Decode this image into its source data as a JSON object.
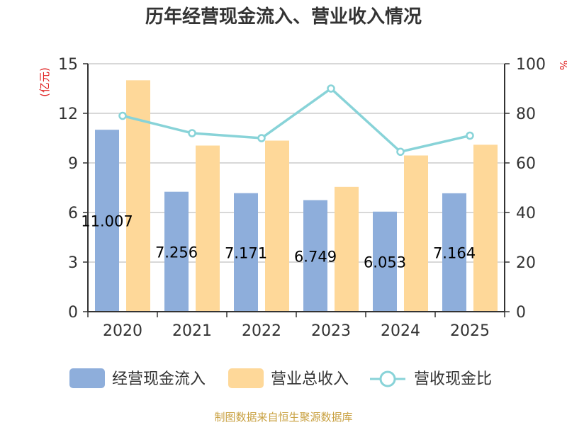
{
  "source_note": "制图数据来自恒生聚源数据库",
  "chart_data": {
    "type": "bar",
    "title": "历年经营现金流入、营业收入情况",
    "categories": [
      "2020",
      "2021",
      "2022",
      "2023",
      "2024",
      "2025"
    ],
    "y_left": {
      "unit": "(亿元)",
      "range": [
        0,
        15
      ],
      "ticks": [
        "0",
        "3",
        "6",
        "9",
        "12",
        "15"
      ]
    },
    "y_right": {
      "unit": "%",
      "range": [
        0,
        100
      ],
      "ticks": [
        "0",
        "20",
        "40",
        "60",
        "80",
        "100"
      ]
    },
    "grid": true,
    "legend_position": "bottom",
    "series": [
      {
        "name": "经营现金流入",
        "type": "bar",
        "axis": "left",
        "color": "#8eaedb",
        "values": [
          11.007,
          7.256,
          7.171,
          6.749,
          6.053,
          7.164
        ],
        "labels": [
          "11.007",
          "7.256",
          "7.171",
          "6.749",
          "6.053",
          "7.164"
        ]
      },
      {
        "name": "营业总收入",
        "type": "bar",
        "axis": "left",
        "color": "#fed899",
        "values": [
          14.0,
          10.05,
          10.35,
          7.55,
          9.45,
          10.1
        ]
      },
      {
        "name": "营收现金比",
        "type": "line",
        "axis": "right",
        "color": "#88d3d8",
        "values": [
          79,
          72,
          70,
          90,
          64.5,
          71
        ]
      }
    ],
    "colors": {
      "left_unit": "#e02020",
      "right_unit": "#e02020",
      "source": "#c8a040",
      "axis": "#333333",
      "grid": "#cccccc"
    }
  }
}
